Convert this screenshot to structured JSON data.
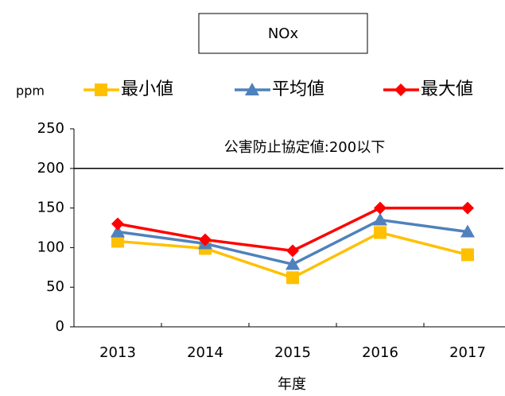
{
  "chart_data": {
    "type": "line",
    "title": "NOx",
    "y_label": "ppm",
    "x_label": "年度",
    "categories": [
      "2013",
      "2014",
      "2015",
      "2016",
      "2017"
    ],
    "series": [
      {
        "name": "最小値",
        "color": "#ffc000",
        "marker": "square",
        "values": [
          108,
          99,
          62,
          119,
          91
        ]
      },
      {
        "name": "平均値",
        "color": "#4f81bd",
        "marker": "triangle",
        "values": [
          120,
          105,
          79,
          135,
          120
        ]
      },
      {
        "name": "最大値",
        "color": "#ff0000",
        "marker": "diamond",
        "values": [
          130,
          110,
          96,
          150,
          150
        ]
      }
    ],
    "reference_line": {
      "value": 200,
      "label": "公害防止協定値:200以下"
    },
    "ylim": [
      0,
      250
    ],
    "yticks": [
      0,
      50,
      100,
      150,
      200,
      250
    ],
    "grid": false,
    "legend": "top"
  }
}
